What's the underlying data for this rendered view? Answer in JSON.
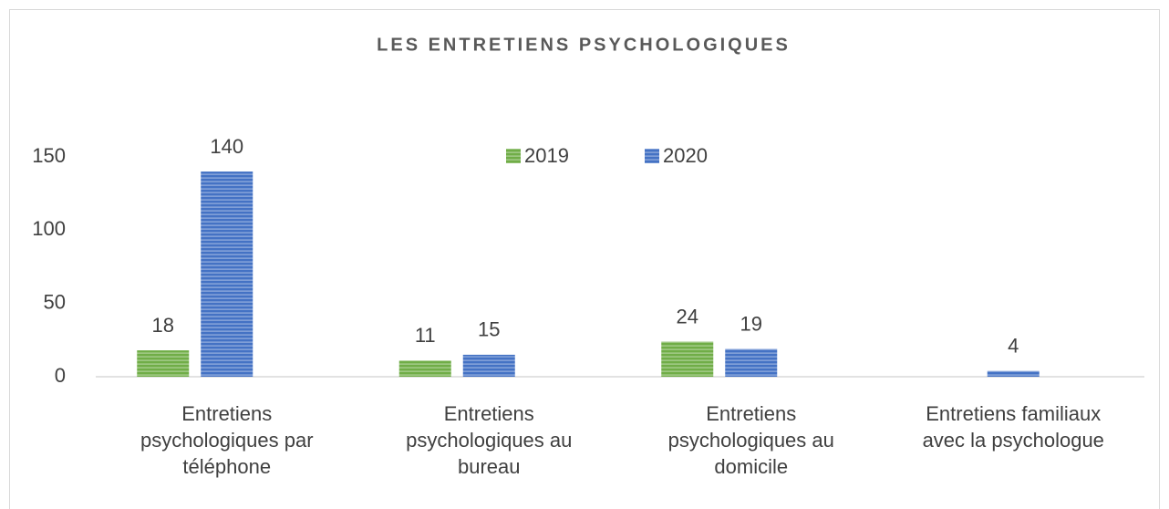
{
  "chart_data": {
    "type": "bar",
    "title": "LES ENTRETIENS PSYCHOLOGIQUES",
    "categories": [
      "Entretiens psychologiques par téléphone",
      "Entretiens psychologiques au bureau",
      "Entretiens psychologiques au domicile",
      "Entretiens familiaux avec la psychologue"
    ],
    "series": [
      {
        "name": "2019",
        "color": "#70ad47",
        "values": [
          18,
          11,
          24,
          null
        ]
      },
      {
        "name": "2020",
        "color": "#4472c4",
        "values": [
          140,
          15,
          19,
          4
        ]
      }
    ],
    "ylim": [
      0,
      150
    ],
    "yticks": [
      0,
      50,
      100,
      150
    ],
    "grid": false,
    "legend": "top"
  }
}
